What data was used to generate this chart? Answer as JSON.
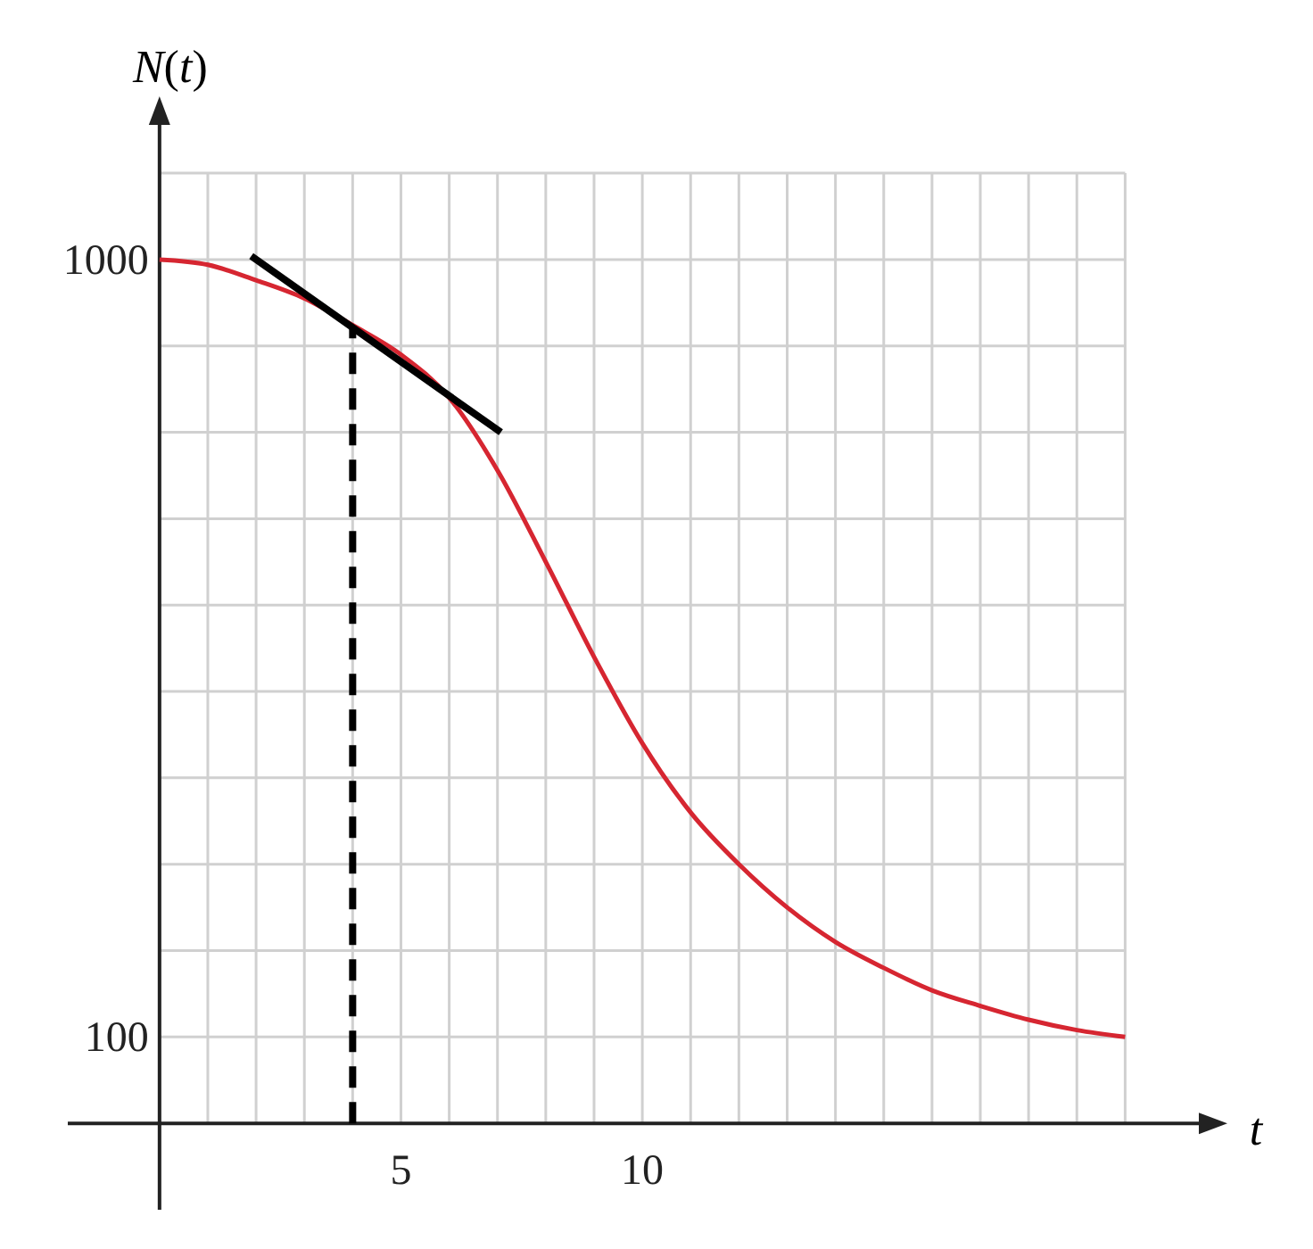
{
  "chart_data": {
    "type": "line",
    "xlabel": "t",
    "ylabel": "N(t)",
    "xlim": [
      -1.9,
      21.6
    ],
    "ylim": [
      -100,
      1160
    ],
    "xticks": [
      {
        "value": 0,
        "label": null
      },
      {
        "value": 1,
        "label": null
      },
      {
        "value": 2,
        "label": null
      },
      {
        "value": 3,
        "label": null
      },
      {
        "value": 4,
        "label": null
      },
      5,
      {
        "value": 6,
        "label": null
      },
      {
        "value": 7,
        "label": null
      },
      {
        "value": 8,
        "label": null
      },
      {
        "value": 9,
        "label": null
      },
      10,
      {
        "value": 11,
        "label": null
      },
      {
        "value": 12,
        "label": null
      },
      {
        "value": 13,
        "label": null
      },
      {
        "value": 14,
        "label": null
      },
      {
        "value": 15,
        "label": null
      },
      {
        "value": 16,
        "label": null
      },
      {
        "value": 17,
        "label": null
      },
      {
        "value": 18,
        "label": null
      },
      {
        "value": 19,
        "label": null
      },
      {
        "value": 20,
        "label": null
      }
    ],
    "yticks": [
      {
        "value": 0,
        "label": null
      },
      100,
      {
        "value": 200,
        "label": null
      },
      {
        "value": 300,
        "label": null
      },
      {
        "value": 400,
        "label": null
      },
      {
        "value": 500,
        "label": null
      },
      {
        "value": 600,
        "label": null
      },
      {
        "value": 700,
        "label": null
      },
      {
        "value": 800,
        "label": null
      },
      {
        "value": 900,
        "label": null
      },
      1000,
      {
        "value": 1100,
        "label": null
      }
    ],
    "grid": true,
    "marker": "none",
    "series": [
      {
        "color": "#d62631",
        "line_style": "solid",
        "x": [
          0,
          1,
          2,
          3,
          4,
          5,
          6,
          7,
          8,
          9,
          10,
          11,
          12,
          13,
          14,
          15,
          16,
          17,
          18,
          19,
          20
        ],
        "values": [
          1000,
          994,
          976,
          955,
          924,
          890,
          840,
          756,
          650,
          540,
          440,
          360,
          300,
          250,
          210,
          180,
          154,
          136,
          120,
          108,
          100
        ]
      },
      {
        "color": "#000000",
        "line_style": "solid",
        "x": [
          1.9,
          7.07
        ],
        "values": [
          1004,
          800
        ]
      },
      {
        "color": "#000000",
        "line_style": "dashed",
        "x": [
          4,
          4
        ],
        "values": [
          0,
          920
        ]
      }
    ]
  }
}
